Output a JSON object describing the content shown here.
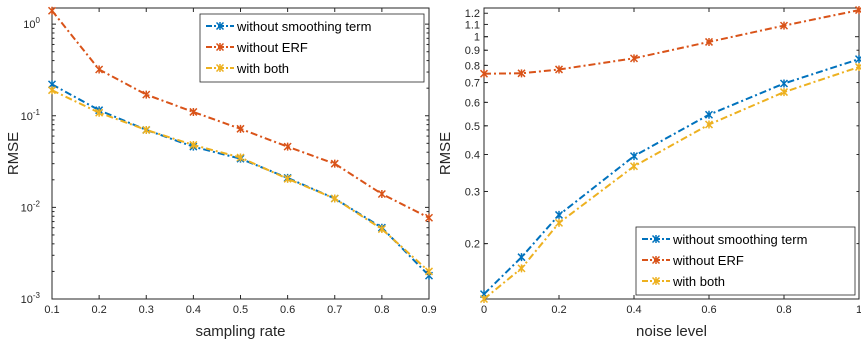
{
  "chart_data": [
    {
      "type": "line",
      "title": "",
      "xlabel": "sampling rate",
      "ylabel": "RMSE",
      "yscale": "log",
      "xlim": [
        0.1,
        0.9
      ],
      "ylim": [
        0.001,
        1.5
      ],
      "x_ticks": [
        "0.1",
        "0.2",
        "0.3",
        "0.4",
        "0.5",
        "0.6",
        "0.7",
        "0.8",
        "0.9"
      ],
      "y_ticks": [
        {
          "value": 0.001,
          "base": "10",
          "exp": "-3"
        },
        {
          "value": 0.01,
          "base": "10",
          "exp": "-2"
        },
        {
          "value": 0.1,
          "base": "10",
          "exp": "-1"
        },
        {
          "value": 1,
          "base": "10",
          "exp": "0"
        }
      ],
      "grid": false,
      "legend_position": "top-right",
      "x": [
        0.1,
        0.2,
        0.3,
        0.4,
        0.5,
        0.6,
        0.7,
        0.8,
        0.9
      ],
      "series": [
        {
          "name": "without smoothing term",
          "color": "#0072BD",
          "values": [
            0.22,
            0.115,
            0.07,
            0.046,
            0.034,
            0.021,
            0.0125,
            0.006,
            0.0018
          ]
        },
        {
          "name": "without ERF",
          "color": "#D95319",
          "values": [
            1.4,
            0.32,
            0.17,
            0.11,
            0.072,
            0.046,
            0.03,
            0.014,
            0.0077
          ]
        },
        {
          "name": "with both",
          "color": "#EDB120",
          "values": [
            0.19,
            0.108,
            0.07,
            0.048,
            0.035,
            0.0205,
            0.0125,
            0.0058,
            0.002
          ]
        }
      ]
    },
    {
      "type": "line",
      "title": "",
      "xlabel": "noise level",
      "ylabel": "RMSE",
      "yscale": "log",
      "xlim": [
        0,
        1
      ],
      "ylim": [
        0.13,
        1.25
      ],
      "x_ticks": [
        "0",
        "0.2",
        "0.4",
        "0.6",
        "0.8",
        "1"
      ],
      "y_ticks": [
        {
          "value": 0.2,
          "label": "0.2"
        },
        {
          "value": 0.3,
          "label": "0.3"
        },
        {
          "value": 0.4,
          "label": "0.4"
        },
        {
          "value": 0.5,
          "label": "0.5"
        },
        {
          "value": 0.6,
          "label": "0.6"
        },
        {
          "value": 0.7,
          "label": "0.7"
        },
        {
          "value": 0.8,
          "label": "0.8"
        },
        {
          "value": 0.9,
          "label": "0.9"
        },
        {
          "value": 1.0,
          "label": "1"
        },
        {
          "value": 1.1,
          "label": "1.1"
        },
        {
          "value": 1.2,
          "label": "1.2"
        }
      ],
      "grid": false,
      "legend_position": "bottom-right",
      "x": [
        0,
        0.1,
        0.2,
        0.4,
        0.6,
        0.8,
        1.0
      ],
      "series": [
        {
          "name": "without smoothing term",
          "color": "#0072BD",
          "values": [
            0.135,
            0.18,
            0.25,
            0.395,
            0.545,
            0.695,
            0.84
          ]
        },
        {
          "name": "without ERF",
          "color": "#D95319",
          "values": [
            0.75,
            0.752,
            0.775,
            0.845,
            0.96,
            1.09,
            1.23
          ]
        },
        {
          "name": "with both",
          "color": "#EDB120",
          "values": [
            0.13,
            0.165,
            0.235,
            0.365,
            0.505,
            0.65,
            0.79
          ]
        }
      ]
    }
  ]
}
